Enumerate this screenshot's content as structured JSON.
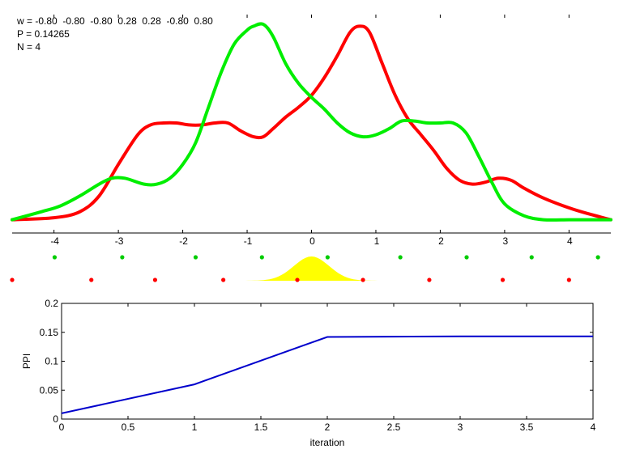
{
  "params": {
    "w_line": "w = -0.80  -0.80  -0.80  0.28  0.28  -0.80  0.80",
    "p_line": "P = 0.14265",
    "n_line": "N = 4"
  },
  "chart_data": [
    {
      "type": "line",
      "xlim": [
        -4.65,
        4.65
      ],
      "ylim": [
        0,
        1
      ],
      "x_ticks": [
        -4,
        -3,
        -2,
        -1,
        0,
        1,
        2,
        3,
        4
      ],
      "x_tick_labels": [
        "-4",
        "-3",
        "-2",
        "-1",
        "0",
        "1",
        "2",
        "3",
        "4"
      ],
      "y_axis_shown": false,
      "grid": false,
      "series": [
        {
          "color": "#ff0000",
          "x": [
            -4.65,
            -4.0,
            -3.6,
            -3.3,
            -3.0,
            -2.7,
            -2.5,
            -2.3,
            -2.1,
            -1.9,
            -1.7,
            -1.5,
            -1.3,
            -1.1,
            -0.9,
            -0.75,
            -0.6,
            -0.4,
            -0.2,
            0.0,
            0.2,
            0.4,
            0.6,
            0.75,
            0.9,
            1.1,
            1.3,
            1.5,
            1.7,
            1.9,
            2.1,
            2.3,
            2.5,
            2.7,
            2.9,
            3.1,
            3.3,
            3.6,
            4.0,
            4.3,
            4.65
          ],
          "y": [
            0.01,
            0.02,
            0.05,
            0.13,
            0.29,
            0.44,
            0.49,
            0.5,
            0.5,
            0.49,
            0.49,
            0.5,
            0.5,
            0.46,
            0.43,
            0.43,
            0.47,
            0.53,
            0.58,
            0.64,
            0.73,
            0.84,
            0.96,
            0.99,
            0.96,
            0.8,
            0.64,
            0.52,
            0.44,
            0.36,
            0.27,
            0.21,
            0.19,
            0.2,
            0.22,
            0.21,
            0.17,
            0.12,
            0.07,
            0.04,
            0.01
          ]
        },
        {
          "color": "#00ee00",
          "x": [
            -4.65,
            -4.2,
            -3.9,
            -3.6,
            -3.3,
            -3.1,
            -2.9,
            -2.6,
            -2.4,
            -2.2,
            -2.0,
            -1.8,
            -1.6,
            -1.4,
            -1.2,
            -1.0,
            -0.9,
            -0.75,
            -0.6,
            -0.4,
            -0.2,
            0.0,
            0.2,
            0.4,
            0.6,
            0.8,
            1.0,
            1.2,
            1.4,
            1.6,
            1.8,
            2.0,
            2.2,
            2.4,
            2.6,
            2.8,
            3.0,
            3.3,
            3.6,
            4.0,
            4.3,
            4.65
          ],
          "y": [
            0.01,
            0.05,
            0.08,
            0.13,
            0.19,
            0.22,
            0.22,
            0.19,
            0.19,
            0.22,
            0.29,
            0.4,
            0.58,
            0.76,
            0.9,
            0.97,
            0.99,
            1.0,
            0.94,
            0.8,
            0.7,
            0.63,
            0.57,
            0.5,
            0.45,
            0.43,
            0.44,
            0.47,
            0.51,
            0.51,
            0.5,
            0.5,
            0.5,
            0.45,
            0.33,
            0.2,
            0.09,
            0.03,
            0.01,
            0.01,
            0.01,
            0.01
          ]
        }
      ]
    },
    {
      "type": "scatter",
      "xlim": [
        -4.65,
        4.65
      ],
      "series": [
        {
          "color": "#00cc00",
          "x": [
            -3.99,
            -2.94,
            -1.8,
            -0.77,
            0.25,
            1.38,
            2.41,
            3.42,
            4.45
          ]
        },
        {
          "color": "#ff0000",
          "x": [
            -4.65,
            -3.42,
            -2.43,
            -1.37,
            -0.22,
            0.8,
            1.83,
            2.97,
            4.0
          ]
        }
      ],
      "gaussian": {
        "color": "#ffff00",
        "center": 0.0,
        "width": 0.55,
        "spread": 1.4
      }
    },
    {
      "type": "line",
      "xlabel": "iteration",
      "ylabel": "PPI",
      "xlim": [
        0,
        4
      ],
      "ylim": [
        0,
        0.2
      ],
      "x_ticks": [
        0,
        0.5,
        1,
        1.5,
        2,
        2.5,
        3,
        3.5,
        4
      ],
      "x_tick_labels": [
        "0",
        "0.5",
        "1",
        "1.5",
        "2",
        "2.5",
        "3",
        "3.5",
        "4"
      ],
      "y_ticks": [
        0,
        0.05,
        0.1,
        0.15,
        0.2
      ],
      "y_tick_labels": [
        "0",
        "0.05",
        "0.1",
        "0.15",
        "0.2"
      ],
      "grid": false,
      "series": [
        {
          "color": "#0000cc",
          "x": [
            0,
            1,
            2,
            3,
            4
          ],
          "y": [
            0.01,
            0.06,
            0.142,
            0.143,
            0.143
          ]
        }
      ]
    }
  ]
}
